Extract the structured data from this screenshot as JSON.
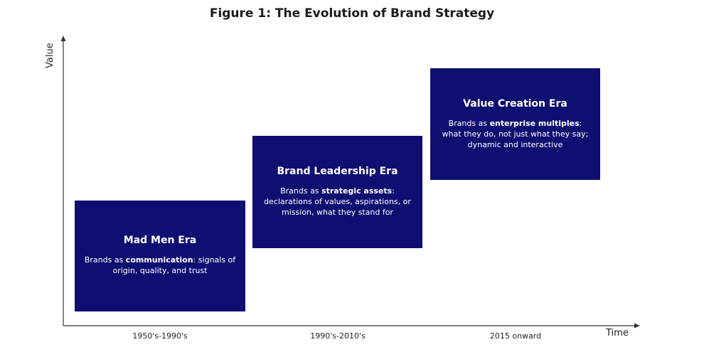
{
  "title": "Figure 1: The Evolution of Brand Strategy",
  "axes": {
    "y_label": "Value",
    "x_label": "Time"
  },
  "eras": [
    {
      "title": "Mad Men Era",
      "desc_prefix": "Brands as ",
      "desc_bold": "communication",
      "desc_suffix": ": signals of origin, quality, and trust",
      "period": "1950's-1990's"
    },
    {
      "title": "Brand Leadership Era",
      "desc_prefix": "Brands as ",
      "desc_bold": "strategic assets",
      "desc_suffix": ": declarations of values, aspirations, or mission, what they stand for",
      "period": "1990's-2010's"
    },
    {
      "title": "Value Creation Era",
      "desc_prefix": "Brands as ",
      "desc_bold": "enterprise multiples",
      "desc_suffix": ": what they do, not just what they say; dynamic and interactive",
      "period": "2015 onward"
    }
  ],
  "colors": {
    "box": "#0f0f72",
    "box_text": "#ffffff",
    "axis": "#333333"
  }
}
